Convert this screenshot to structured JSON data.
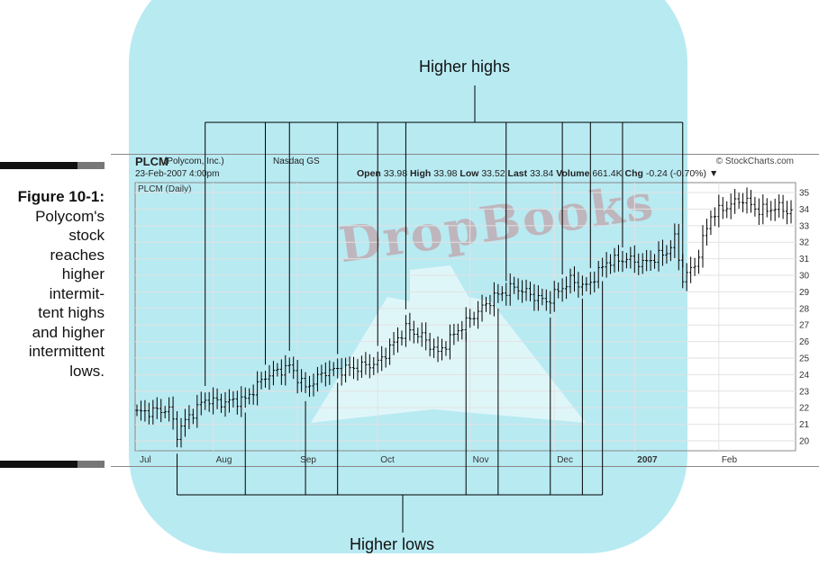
{
  "caption": {
    "label": "Figure 10-1:",
    "lines": [
      "Polycom's",
      "stock",
      "reaches",
      "higher",
      "intermit-",
      "tent highs",
      "and higher",
      "intermittent",
      "lows."
    ]
  },
  "watermark": {
    "text": "DropBooks",
    "color": "#b8eaf2"
  },
  "header": {
    "symbol": "PLCM",
    "company": "(Polycom, Inc.)",
    "exchange": "Nasdaq GS",
    "date": "23-Feb-2007 4:00pm",
    "copyright": "© StockCharts.com",
    "quote": {
      "open_label": "Open",
      "open": "33.98",
      "high_label": "High",
      "high": "33.98",
      "low_label": "Low",
      "low": "33.52",
      "last_label": "Last",
      "last": "33.84",
      "volume_label": "Volume",
      "volume": "661.4K",
      "chg_label": "Chg",
      "chg": "-0.24 (-0.70%)",
      "chg_arrow": "▼"
    },
    "plot_label": "PLCM (Daily)"
  },
  "annotations": {
    "top": "Higher highs",
    "bottom": "Higher lows"
  },
  "chart_data": {
    "type": "ohlc",
    "title": "PLCM (Daily)",
    "ylim": [
      19.4,
      35.6
    ],
    "y_ticks": [
      20,
      21,
      22,
      23,
      24,
      25,
      26,
      27,
      28,
      29,
      30,
      31,
      32,
      33,
      34,
      35
    ],
    "x_labels": [
      {
        "label": "Jul",
        "index": 0
      },
      {
        "label": "Aug",
        "index": 19
      },
      {
        "label": "Sep",
        "index": 40
      },
      {
        "label": "Oct",
        "index": 60
      },
      {
        "label": "Nov",
        "index": 83
      },
      {
        "label": "Dec",
        "index": 104
      },
      {
        "label": "2007",
        "index": 124,
        "bold": true
      },
      {
        "label": "Feb",
        "index": 145
      }
    ],
    "grid": true,
    "n_bars": 164,
    "close_anchors": [
      [
        0,
        21.7
      ],
      [
        8,
        21.9
      ],
      [
        10,
        20.4
      ],
      [
        12,
        21.2
      ],
      [
        17,
        22.5
      ],
      [
        21,
        22.3
      ],
      [
        27,
        22.5
      ],
      [
        32,
        23.9
      ],
      [
        38,
        24.5
      ],
      [
        42,
        23.2
      ],
      [
        47,
        24.2
      ],
      [
        54,
        24.4
      ],
      [
        60,
        24.7
      ],
      [
        67,
        26.8
      ],
      [
        71,
        26.3
      ],
      [
        75,
        25.3
      ],
      [
        80,
        26.7
      ],
      [
        89,
        28.7
      ],
      [
        94,
        29.3
      ],
      [
        102,
        28.4
      ],
      [
        108,
        29.7
      ],
      [
        112,
        29.3
      ],
      [
        117,
        30.8
      ],
      [
        122,
        31.0
      ],
      [
        126,
        30.7
      ],
      [
        132,
        31.4
      ],
      [
        134,
        32.2
      ],
      [
        136,
        29.8
      ],
      [
        139,
        30.6
      ],
      [
        143,
        33.6
      ],
      [
        148,
        34.3
      ],
      [
        151,
        34.6
      ],
      [
        155,
        33.9
      ],
      [
        160,
        34.1
      ],
      [
        163,
        33.8
      ]
    ],
    "higher_highs_at": [
      17,
      32,
      38,
      50,
      60,
      67,
      92,
      106,
      113,
      121,
      136
    ],
    "higher_lows_at": [
      10,
      27,
      42,
      50,
      82,
      90,
      103,
      111,
      116
    ]
  }
}
